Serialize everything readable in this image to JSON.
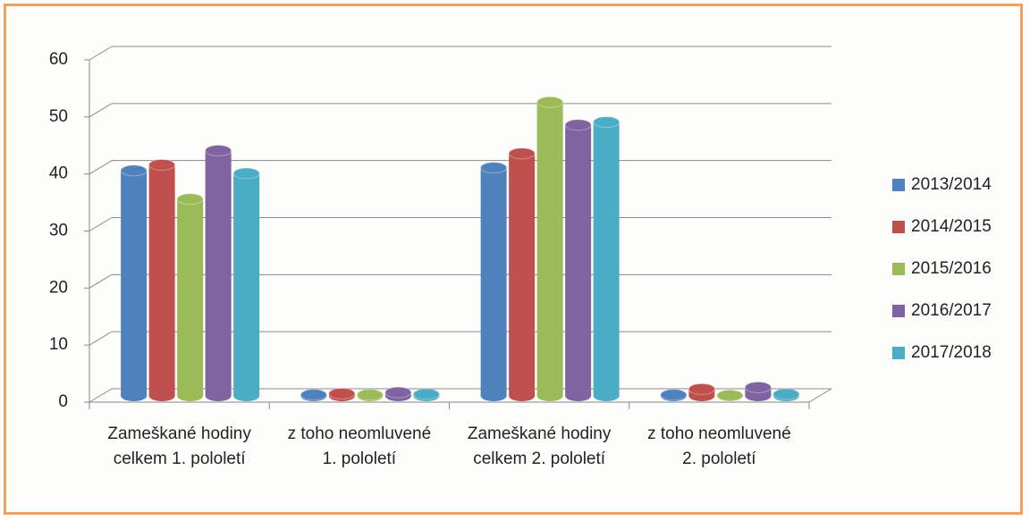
{
  "chart_data": {
    "type": "bar3d",
    "categories": [
      "Zameškané hodiny celkem 1. pololetí",
      "z toho neomluvené 1. pololetí",
      "Zameškané hodiny celkem 2. pololetí",
      "z toho neomluvené 2. pololetí"
    ],
    "series": [
      {
        "name": "2013/2014",
        "color": "#4f81bd",
        "values": [
          39.5,
          0.2,
          40,
          0.2
        ]
      },
      {
        "name": "2014/2015",
        "color": "#c0504d",
        "values": [
          40.5,
          0.4,
          42.5,
          1.2
        ]
      },
      {
        "name": "2015/2016",
        "color": "#9bbb59",
        "values": [
          34.5,
          0.2,
          51.5,
          0.1
        ]
      },
      {
        "name": "2016/2017",
        "color": "#8064a2",
        "values": [
          43,
          0.6,
          47.5,
          1.5
        ]
      },
      {
        "name": "2017/2018",
        "color": "#4bacc6",
        "values": [
          39,
          0.3,
          48,
          0.3
        ]
      }
    ],
    "ylim": [
      0,
      60
    ],
    "yticks": [
      0,
      10,
      20,
      30,
      40,
      50,
      60
    ],
    "grid": true,
    "legend": "right"
  }
}
